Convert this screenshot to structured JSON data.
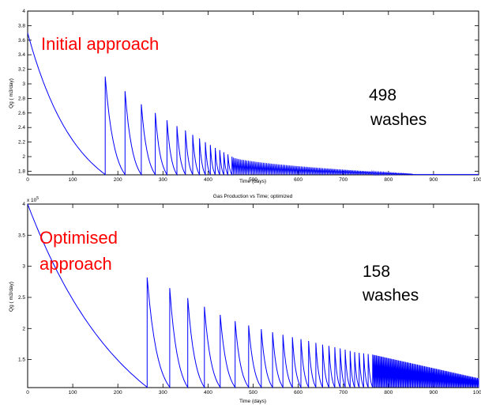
{
  "chart_data": [
    {
      "type": "line",
      "title": "",
      "xlabel": "Time (days)",
      "ylabel": "Qg  ( m3/day)",
      "xlim": [
        0,
        1000
      ],
      "ylim": [
        1.75,
        4
      ],
      "x_ticks": [
        "0",
        "100",
        "200",
        "300",
        "400",
        "500",
        "600",
        "700",
        "800",
        "900",
        "1000"
      ],
      "y_ticks": [
        "1.8",
        "2",
        "2.2",
        "2.4",
        "2.6",
        "2.8",
        "3",
        "3.2",
        "3.4",
        "3.6",
        "3.8",
        "4"
      ],
      "line_color": "#0000ff",
      "annotations": {
        "label": "Initial approach",
        "count": "498",
        "unit": "washes"
      },
      "series": [
        {
          "wash_times": [
            172,
            216,
            252,
            283,
            309,
            331,
            350,
            366,
            381,
            394,
            405,
            416,
            426,
            435,
            444,
            453
          ],
          "peak_values": [
            3.1,
            2.9,
            2.72,
            2.6,
            2.5,
            2.42,
            2.36,
            2.3,
            2.25,
            2.2,
            2.16,
            2.12,
            2.09,
            2.06,
            2.03,
            2.0
          ],
          "dense_wash_region": [
            453,
            855
          ],
          "start_value": 3.7,
          "end_value": 1.76
        }
      ]
    },
    {
      "type": "line",
      "title": "Gas Production vs Time; optimized",
      "xlabel": "Time (days)",
      "ylabel": "Qg  ( m3/day)",
      "y_scale_label": "x 10",
      "y_scale_exp": "5",
      "xlim": [
        0,
        1000
      ],
      "ylim": [
        1.05,
        4
      ],
      "x_ticks": [
        "0",
        "100",
        "200",
        "300",
        "400",
        "500",
        "600",
        "700",
        "800",
        "900",
        "1000"
      ],
      "y_ticks": [
        "1.5",
        "2",
        "2.5",
        "3",
        "3.5",
        "4"
      ],
      "line_color": "#0000ff",
      "annotations": {
        "label_line1": "Optimised",
        "label_line2": "approach",
        "count": "158",
        "unit": "washes"
      },
      "series": [
        {
          "wash_times": [
            265,
            315,
            355,
            392,
            427,
            460,
            490,
            518,
            543,
            566,
            587,
            606,
            623,
            639,
            654,
            668,
            681,
            693,
            704,
            715,
            725,
            735,
            745,
            755,
            765
          ],
          "peak_values": [
            2.82,
            2.65,
            2.49,
            2.35,
            2.22,
            2.12,
            2.05,
            1.99,
            1.94,
            1.9,
            1.86,
            1.83,
            1.8,
            1.77,
            1.74,
            1.72,
            1.7,
            1.68,
            1.66,
            1.64,
            1.62,
            1.61,
            1.6,
            1.59,
            1.58
          ],
          "dense_wash_region": [
            765,
            1000
          ],
          "start_value": 4.0,
          "end_value": 1.2
        }
      ]
    }
  ]
}
